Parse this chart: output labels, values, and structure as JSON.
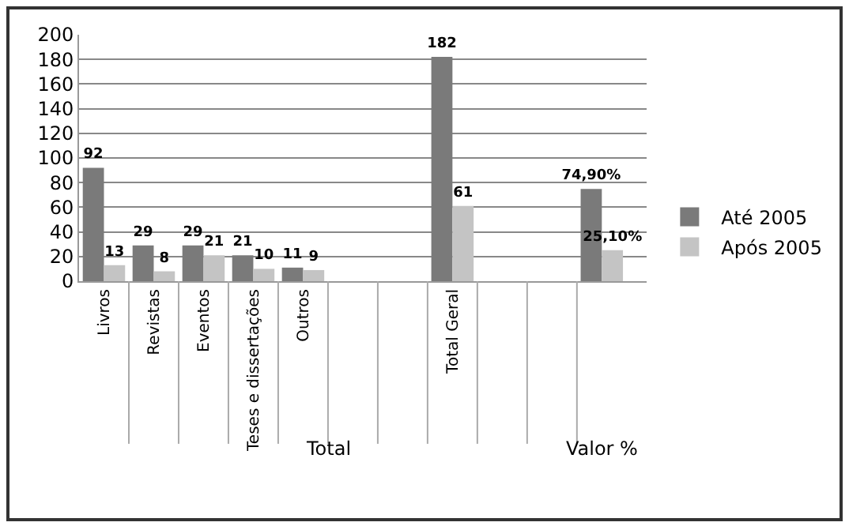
{
  "chart_data": {
    "type": "bar",
    "categories": [
      "Livros",
      "Revistas",
      "Eventos",
      "Teses e dissertações",
      "Outros",
      null,
      null,
      "Total Geral",
      null,
      null,
      null
    ],
    "series": [
      {
        "name": "Até 2005",
        "color": "#7a7a7a",
        "values": [
          92,
          29,
          29,
          21,
          11,
          null,
          null,
          182,
          null,
          null,
          74.9
        ],
        "value_labels": [
          "92",
          "29",
          "29",
          "21",
          "11",
          null,
          null,
          "182",
          null,
          null,
          "74,90%"
        ]
      },
      {
        "name": "Após 2005",
        "color": "#c4c4c4",
        "values": [
          13,
          8,
          21,
          10,
          9,
          null,
          null,
          61,
          null,
          null,
          25.1
        ],
        "value_labels": [
          "13",
          "8",
          "21",
          "10",
          "9",
          null,
          null,
          "61",
          null,
          null,
          "25,10%"
        ]
      }
    ],
    "annotations": [
      "Total",
      "Valor %"
    ],
    "ylim": [
      0,
      200
    ],
    "yticks": [
      0,
      20,
      40,
      60,
      80,
      100,
      120,
      140,
      160,
      180,
      200
    ],
    "grid": "y",
    "legend": "right"
  }
}
